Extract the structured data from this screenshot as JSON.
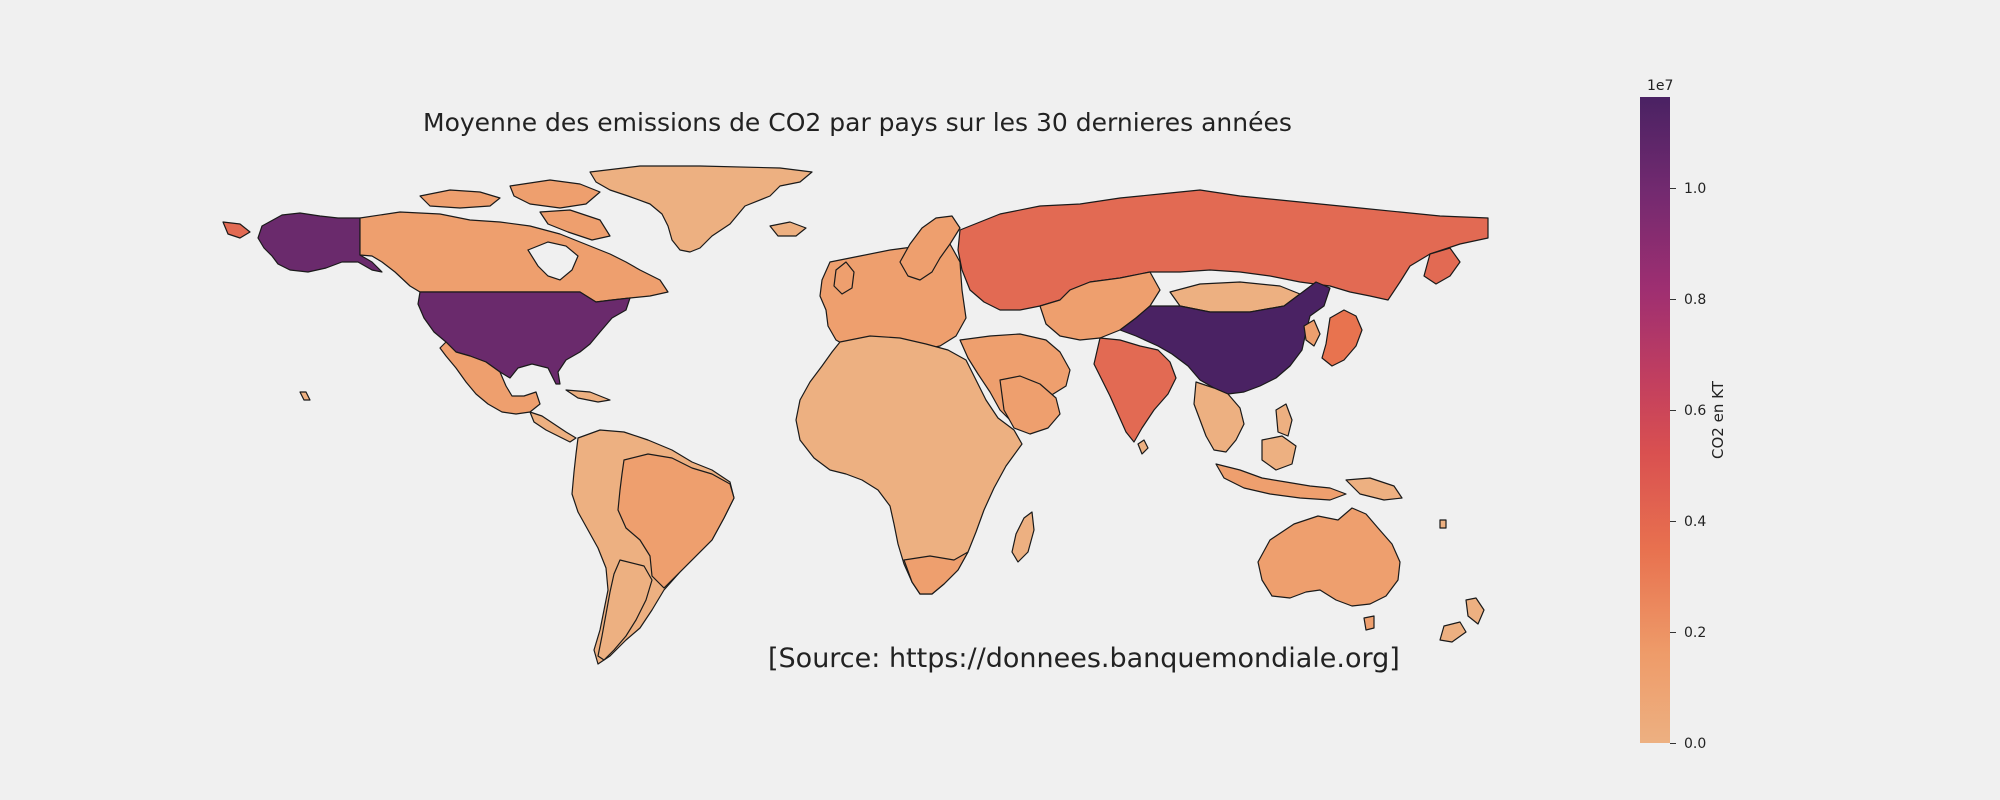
{
  "map": {
    "title": "Moyenne des emissions de CO2 par pays sur les 30 dernieres années",
    "source": "[Source: https://donnees.banquemondiale.org]",
    "colorbar": {
      "exponent": "1e7",
      "label": "CO2 en KT",
      "ticks": [
        "0.0",
        "0.2",
        "0.4",
        "0.6",
        "0.8",
        "1.0"
      ],
      "range": [
        0,
        11600000
      ],
      "colormap": "flare (light orange to dark purple)"
    },
    "colors": {
      "background": "#f0f0f0",
      "low": "#edb081",
      "mid": "#e26a53",
      "high": "#4a2263",
      "border": "#1a1a1a"
    },
    "regions": [
      {
        "name": "United States",
        "level": 0.9
      },
      {
        "name": "Alaska",
        "level": 0.9
      },
      {
        "name": "China",
        "level": 1.0
      },
      {
        "name": "Russia",
        "level": 0.35
      },
      {
        "name": "India",
        "level": 0.27
      },
      {
        "name": "Japan",
        "level": 0.24
      },
      {
        "name": "Canada",
        "level": 0.12
      },
      {
        "name": "Greenland",
        "level": 0.03
      },
      {
        "name": "Mexico",
        "level": 0.09
      },
      {
        "name": "Europe",
        "level": 0.1
      },
      {
        "name": "Middle East",
        "level": 0.08
      },
      {
        "name": "Central Asia",
        "level": 0.06
      },
      {
        "name": "Mongolia",
        "level": 0.02
      },
      {
        "name": "South America",
        "level": 0.05
      },
      {
        "name": "Brazil",
        "level": 0.09
      },
      {
        "name": "Africa",
        "level": 0.04
      },
      {
        "name": "South Africa",
        "level": 0.1
      },
      {
        "name": "Southeast Asia",
        "level": 0.06
      },
      {
        "name": "Indonesia",
        "level": 0.09
      },
      {
        "name": "Australia",
        "level": 0.08
      },
      {
        "name": "New Zealand",
        "level": 0.02
      }
    ]
  }
}
